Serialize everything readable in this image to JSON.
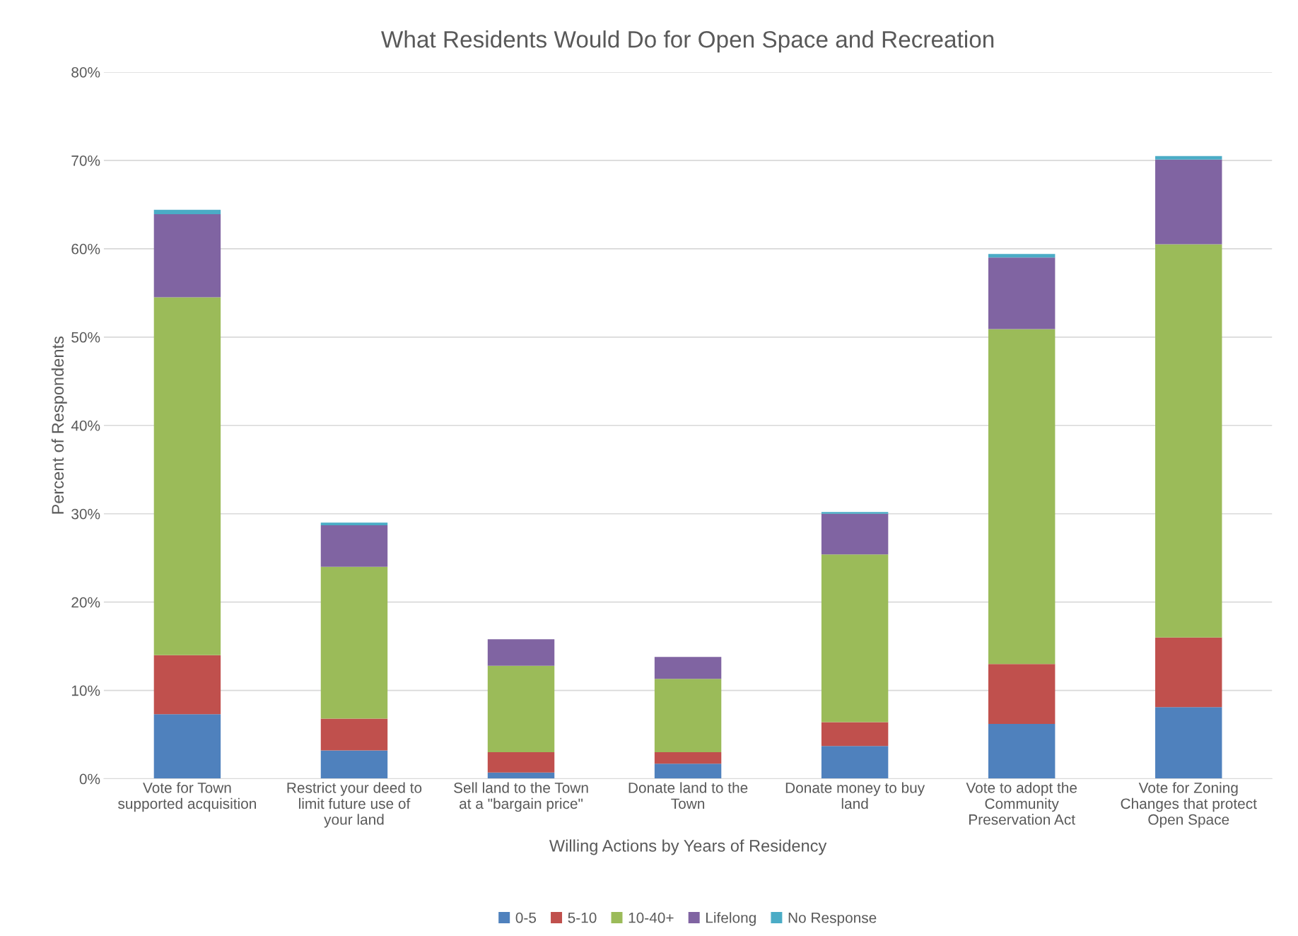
{
  "chart_data": {
    "type": "bar",
    "stacked": true,
    "title": "What Residents Would Do for Open Space and Recreation",
    "xlabel": "Willing Actions by Years of Residency",
    "ylabel": "Percent of Respondents",
    "categories": [
      "Vote for Town\nsupported acquisition",
      "Restrict your deed to\nlimit future use of\nyour land",
      "Sell land to the Town\nat a \"bargain price\"",
      "Donate land to the\nTown",
      "Donate money to buy\nland",
      "Vote to adopt the\nCommunity\nPreservation Act",
      "Vote for Zoning\nChanges that protect\nOpen Space"
    ],
    "series": [
      {
        "name": "0-5",
        "color": "#4f81bd",
        "values": [
          7.3,
          3.2,
          0.7,
          1.7,
          3.7,
          6.2,
          8.1
        ]
      },
      {
        "name": "5-10",
        "color": "#c0504d",
        "values": [
          6.7,
          3.6,
          2.3,
          1.3,
          2.7,
          6.8,
          7.9
        ]
      },
      {
        "name": "10-40+",
        "color": "#9bbb59",
        "values": [
          40.5,
          17.2,
          9.8,
          8.3,
          19.0,
          37.9,
          44.5
        ]
      },
      {
        "name": "Lifelong",
        "color": "#8064a2",
        "values": [
          9.4,
          4.7,
          3.0,
          2.5,
          4.6,
          8.1,
          9.6
        ]
      },
      {
        "name": "No Response",
        "color": "#4bacc6",
        "values": [
          0.5,
          0.3,
          null,
          null,
          0.2,
          0.4,
          0.4
        ]
      }
    ],
    "ylim": [
      0,
      80
    ],
    "yticks": [
      {
        "value": 0,
        "label": "0%"
      },
      {
        "value": 10,
        "label": "10%"
      },
      {
        "value": 20,
        "label": "20%"
      },
      {
        "value": 30,
        "label": "30%"
      },
      {
        "value": 40,
        "label": "40%"
      },
      {
        "value": 50,
        "label": "50%"
      },
      {
        "value": 60,
        "label": "60%"
      },
      {
        "value": 70,
        "label": "70%"
      },
      {
        "value": 80,
        "label": "80%"
      }
    ],
    "grid": "y",
    "legend": "bottom"
  }
}
